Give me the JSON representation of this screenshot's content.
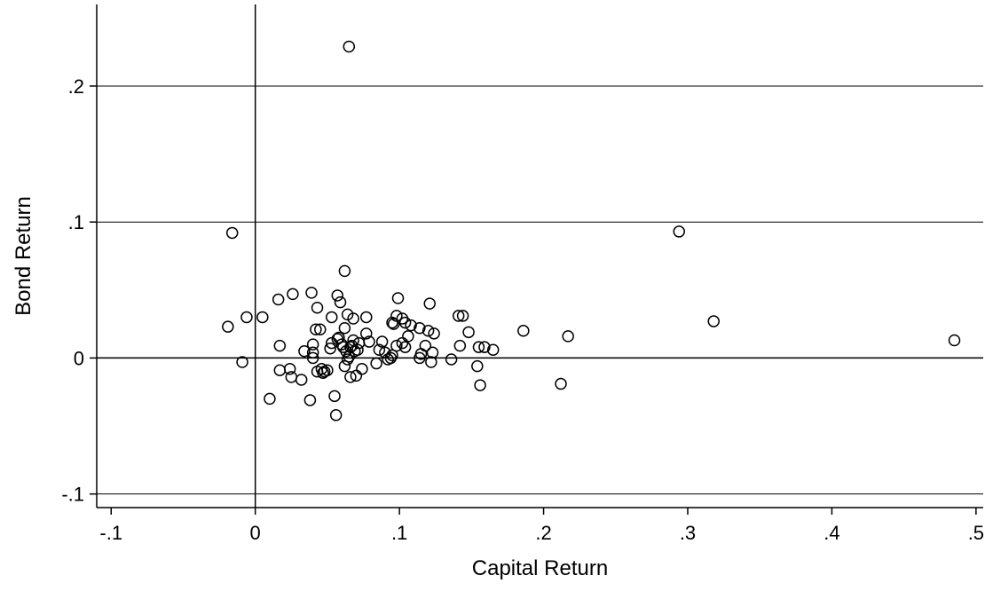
{
  "chart_data": {
    "type": "scatter",
    "title": "",
    "xlabel": "Capital Return",
    "ylabel": "Bond Return",
    "xlim": [
      -0.11,
      0.505
    ],
    "ylim": [
      -0.11,
      0.26
    ],
    "grid": "horizontal",
    "reference_lines": {
      "x": 0,
      "y": 0
    },
    "colors": {
      "marker_stroke": "#000000",
      "axis": "#000000",
      "grid": "#000000"
    },
    "x_ticks": [
      {
        "value": -0.1,
        "label": "-.1"
      },
      {
        "value": 0,
        "label": "0"
      },
      {
        "value": 0.1,
        "label": ".1"
      },
      {
        "value": 0.2,
        "label": ".2"
      },
      {
        "value": 0.3,
        "label": ".3"
      },
      {
        "value": 0.4,
        "label": ".4"
      },
      {
        "value": 0.5,
        "label": ".5"
      }
    ],
    "y_ticks": [
      {
        "value": -0.1,
        "label": "-.1"
      },
      {
        "value": 0,
        "label": "0"
      },
      {
        "value": 0.1,
        "label": ".1"
      },
      {
        "value": 0.2,
        "label": ".2"
      }
    ],
    "points": [
      [
        0.065,
        0.229
      ],
      [
        -0.016,
        0.092
      ],
      [
        0.294,
        0.093
      ],
      [
        0.062,
        0.064
      ],
      [
        -0.019,
        0.023
      ],
      [
        -0.006,
        0.03
      ],
      [
        0.005,
        0.03
      ],
      [
        0.016,
        0.043
      ],
      [
        0.026,
        0.047
      ],
      [
        0.039,
        0.048
      ],
      [
        0.043,
        0.037
      ],
      [
        0.057,
        0.046
      ],
      [
        0.059,
        0.041
      ],
      [
        0.062,
        0.022
      ],
      [
        0.064,
        0.032
      ],
      [
        0.053,
        0.03
      ],
      [
        0.045,
        0.021
      ],
      [
        0.042,
        0.021
      ],
      [
        0.068,
        0.029
      ],
      [
        0.077,
        0.03
      ],
      [
        0.099,
        0.044
      ],
      [
        0.098,
        0.031
      ],
      [
        0.095,
        0.026
      ],
      [
        0.104,
        0.026
      ],
      [
        0.108,
        0.024
      ],
      [
        0.114,
        0.022
      ],
      [
        0.121,
        0.04
      ],
      [
        0.102,
        0.029
      ],
      [
        0.096,
        0.025
      ],
      [
        0.12,
        0.02
      ],
      [
        0.124,
        0.018
      ],
      [
        0.141,
        0.031
      ],
      [
        0.144,
        0.031
      ],
      [
        0.148,
        0.019
      ],
      [
        0.186,
        0.02
      ],
      [
        0.217,
        0.016
      ],
      [
        0.318,
        0.027
      ],
      [
        0.485,
        0.013
      ],
      [
        -0.009,
        -0.003
      ],
      [
        0.017,
        0.009
      ],
      [
        0.017,
        -0.009
      ],
      [
        0.01,
        -0.03
      ],
      [
        0.024,
        -0.008
      ],
      [
        0.025,
        -0.014
      ],
      [
        0.032,
        -0.016
      ],
      [
        0.034,
        0.005
      ],
      [
        0.038,
        -0.031
      ],
      [
        0.04,
        0.0
      ],
      [
        0.04,
        0.01
      ],
      [
        0.043,
        -0.01
      ],
      [
        0.046,
        -0.008
      ],
      [
        0.048,
        -0.01
      ],
      [
        0.047,
        -0.011
      ],
      [
        0.052,
        0.007
      ],
      [
        0.053,
        0.011
      ],
      [
        0.055,
        -0.028
      ],
      [
        0.056,
        -0.042
      ],
      [
        0.057,
        0.014
      ],
      [
        0.058,
        0.015
      ],
      [
        0.06,
        0.01
      ],
      [
        0.061,
        0.008
      ],
      [
        0.062,
        -0.006
      ],
      [
        0.063,
        0.005
      ],
      [
        0.064,
        -0.001
      ],
      [
        0.065,
        0.001
      ],
      [
        0.066,
        -0.014
      ],
      [
        0.067,
        0.009
      ],
      [
        0.068,
        0.013
      ],
      [
        0.069,
        0.005
      ],
      [
        0.07,
        -0.013
      ],
      [
        0.071,
        0.006
      ],
      [
        0.072,
        0.011
      ],
      [
        0.074,
        -0.008
      ],
      [
        0.077,
        0.018
      ],
      [
        0.079,
        0.012
      ],
      [
        0.084,
        -0.004
      ],
      [
        0.086,
        0.006
      ],
      [
        0.088,
        0.012
      ],
      [
        0.09,
        0.004
      ],
      [
        0.092,
        -0.001
      ],
      [
        0.094,
        0.0
      ],
      [
        0.095,
        0.002
      ],
      [
        0.098,
        0.009
      ],
      [
        0.102,
        0.011
      ],
      [
        0.104,
        0.008
      ],
      [
        0.106,
        0.016
      ],
      [
        0.114,
        0.0
      ],
      [
        0.115,
        0.003
      ],
      [
        0.118,
        0.009
      ],
      [
        0.122,
        -0.003
      ],
      [
        0.123,
        0.004
      ],
      [
        0.136,
        -0.001
      ],
      [
        0.142,
        0.009
      ],
      [
        0.154,
        -0.006
      ],
      [
        0.155,
        0.008
      ],
      [
        0.156,
        -0.02
      ],
      [
        0.159,
        0.008
      ],
      [
        0.165,
        0.006
      ],
      [
        0.212,
        -0.019
      ],
      [
        0.04,
        0.004
      ],
      [
        0.05,
        -0.009
      ],
      [
        0.066,
        0.008
      ]
    ]
  }
}
